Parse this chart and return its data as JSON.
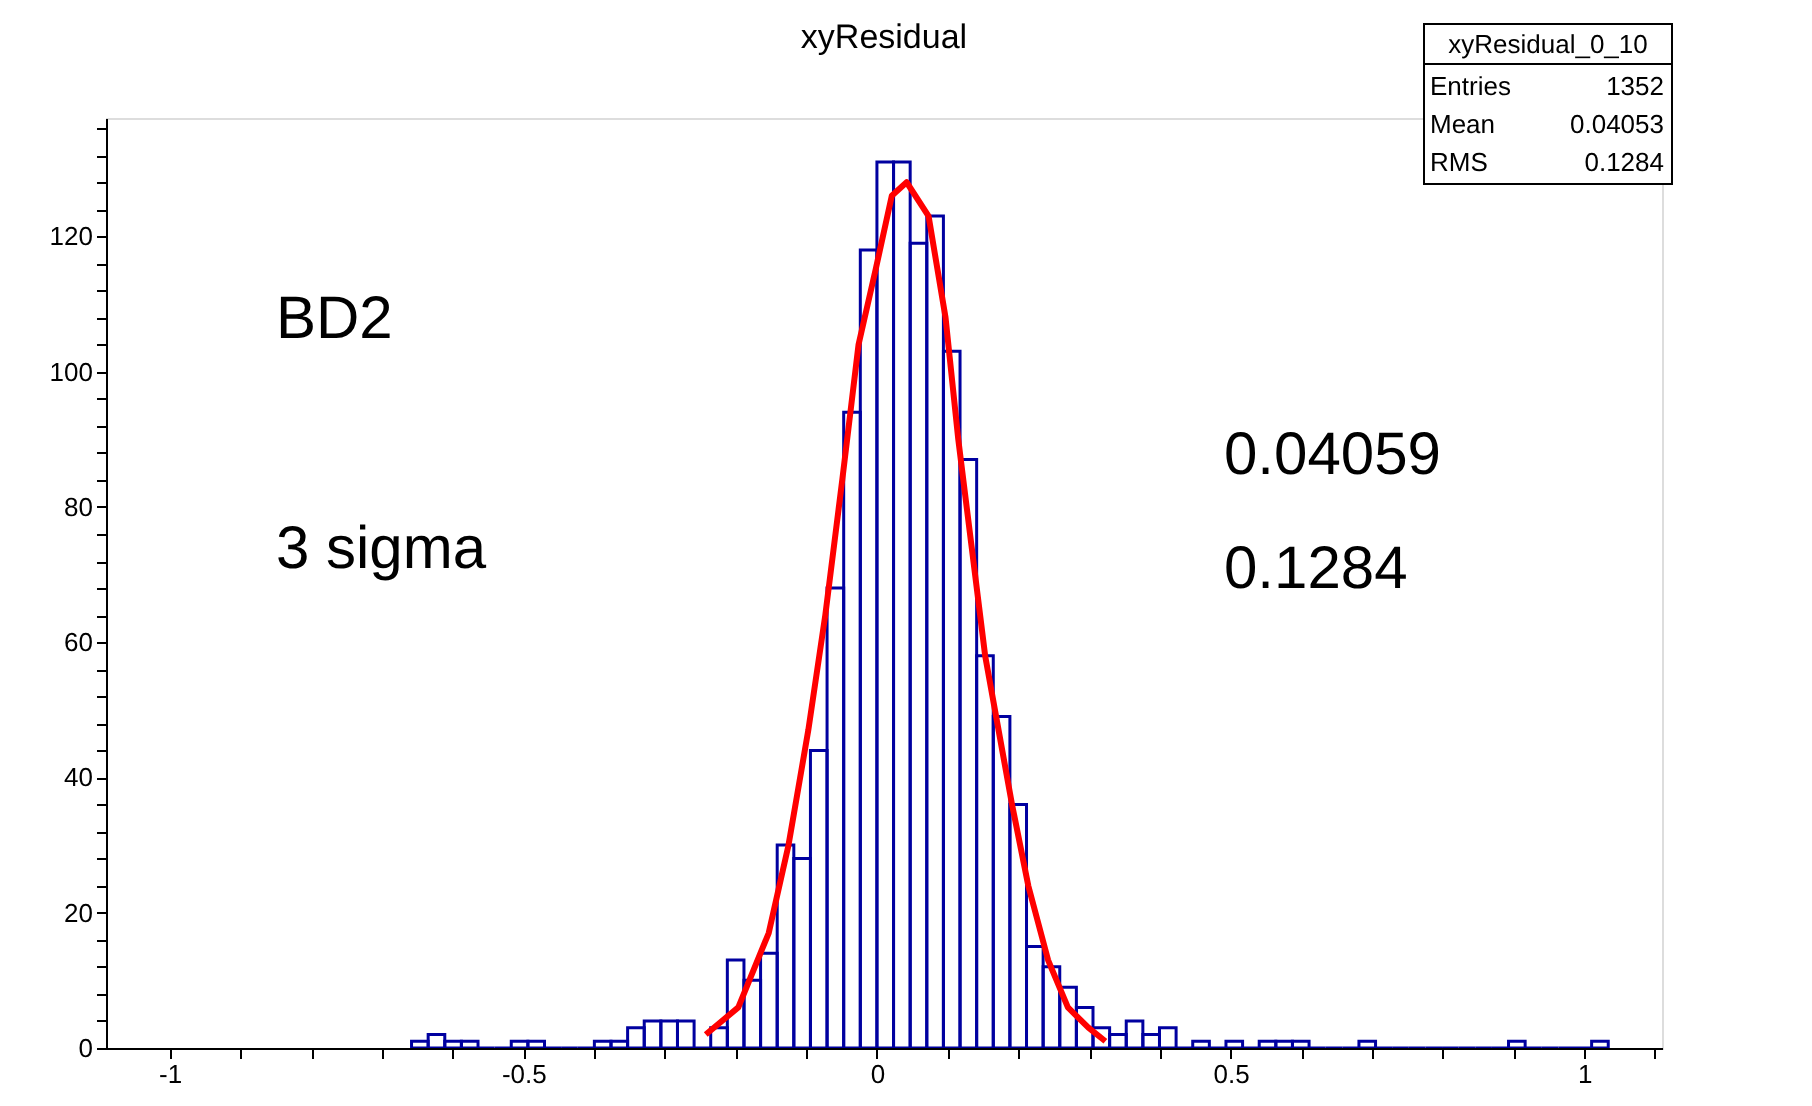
{
  "chart_data": {
    "type": "histogram",
    "title": "xyResidual",
    "xlim": [
      -1.09,
      1.11
    ],
    "ylim": [
      0,
      137.5
    ],
    "xticks": [
      -1,
      {
        "value": -0.9,
        "label": null
      },
      {
        "value": -0.8,
        "label": null
      },
      {
        "value": -0.7,
        "label": null
      },
      {
        "value": -0.6,
        "label": null
      },
      -0.5,
      {
        "value": -0.4,
        "label": null
      },
      {
        "value": -0.3,
        "label": null
      },
      {
        "value": -0.2,
        "label": null
      },
      {
        "value": -0.1,
        "label": null
      },
      0,
      {
        "value": 0.1,
        "label": null
      },
      {
        "value": 0.2,
        "label": null
      },
      {
        "value": 0.3,
        "label": null
      },
      {
        "value": 0.4,
        "label": null
      },
      0.5,
      {
        "value": 0.6,
        "label": null
      },
      {
        "value": 0.7,
        "label": null
      },
      {
        "value": 0.8,
        "label": null
      },
      {
        "value": 0.9,
        "label": null
      },
      1,
      {
        "value": 1.1,
        "label": null
      }
    ],
    "yticks": [
      0,
      {
        "value": 4,
        "label": null
      },
      {
        "value": 8,
        "label": null
      },
      {
        "value": 12,
        "label": null
      },
      {
        "value": 16,
        "label": null
      },
      20,
      {
        "value": 24,
        "label": null
      },
      {
        "value": 28,
        "label": null
      },
      {
        "value": 32,
        "label": null
      },
      {
        "value": 36,
        "label": null
      },
      40,
      {
        "value": 44,
        "label": null
      },
      {
        "value": 48,
        "label": null
      },
      {
        "value": 52,
        "label": null
      },
      {
        "value": 56,
        "label": null
      },
      60,
      {
        "value": 64,
        "label": null
      },
      {
        "value": 68,
        "label": null
      },
      {
        "value": 72,
        "label": null
      },
      {
        "value": 76,
        "label": null
      },
      80,
      {
        "value": 84,
        "label": null
      },
      {
        "value": 88,
        "label": null
      },
      {
        "value": 92,
        "label": null
      },
      {
        "value": 96,
        "label": null
      },
      100,
      {
        "value": 104,
        "label": null
      },
      {
        "value": 108,
        "label": null
      },
      {
        "value": 112,
        "label": null
      },
      {
        "value": 116,
        "label": null
      },
      120,
      {
        "value": 124,
        "label": null
      },
      {
        "value": 128,
        "label": null
      },
      {
        "value": 132,
        "label": null
      },
      {
        "value": 136,
        "label": null
      }
    ],
    "grid": false,
    "series": [
      {
        "color": "#0000a0",
        "bins": [
          -0.658,
          -0.6345,
          -0.611,
          -0.5875,
          -0.564,
          -0.5405,
          -0.517,
          -0.4935,
          -0.47,
          -0.4465,
          -0.423,
          -0.3995,
          -0.376,
          -0.3525,
          -0.329,
          -0.3055,
          -0.282,
          -0.2585,
          -0.235,
          -0.2115,
          -0.188,
          -0.1645,
          -0.141,
          -0.1175,
          -0.094,
          -0.0705,
          -0.047,
          -0.0235,
          0,
          0.0235,
          0.047,
          0.0705,
          0.094,
          0.1175,
          0.141,
          0.1645,
          0.188,
          0.2115,
          0.235,
          0.2585,
          0.282,
          0.3055,
          0.329,
          0.3525,
          0.376,
          0.3995,
          0.423,
          0.4465,
          0.47,
          0.4935,
          0.517,
          0.5405,
          0.564,
          0.5875,
          0.611,
          0.6345,
          0.658,
          0.6815,
          0.705,
          0.7285,
          0.752,
          0.7755,
          0.799,
          0.8225,
          0.846,
          0.8695,
          0.893,
          0.9165,
          0.94,
          0.9635,
          0.987,
          1.0105,
          1.034
        ],
        "values": [
          1,
          2,
          1,
          1,
          0,
          0,
          1,
          1,
          0,
          0,
          0,
          1,
          1,
          3,
          4,
          4,
          4,
          0,
          3,
          13,
          10,
          14,
          30,
          28,
          44,
          68,
          94,
          118,
          131,
          131,
          119,
          123,
          103,
          87,
          58,
          49,
          36,
          15,
          12,
          9,
          6,
          3,
          2,
          4,
          2,
          3,
          0,
          1,
          0,
          1,
          0,
          1,
          1,
          1,
          0,
          0,
          0,
          1,
          0,
          0,
          0,
          0,
          0,
          0,
          0,
          0,
          1,
          0,
          0,
          0,
          0,
          1
        ]
      },
      {
        "type": "line",
        "color": "#ff0000",
        "line_style": "solid",
        "x": [
          -0.242,
          -0.196,
          -0.153,
          -0.125,
          -0.097,
          -0.073,
          -0.049,
          -0.026,
          -0.002,
          0.021,
          0.042,
          0.073,
          0.097,
          0.115,
          0.134,
          0.153,
          0.172,
          0.191,
          0.214,
          0.242,
          0.27,
          0.299,
          0.323
        ],
        "values": [
          2,
          6,
          17,
          30,
          47,
          64,
          84,
          104,
          115,
          126,
          128,
          123,
          108,
          90,
          74,
          58,
          47,
          36,
          24,
          13,
          6,
          3,
          1
        ]
      }
    ],
    "annotations": [
      "xyResidual_0_10",
      "Entries",
      "1352",
      "Mean",
      "0.04053",
      "RMS",
      "0.1284",
      "BD2",
      "3 sigma",
      "0.04059",
      "0.1284"
    ]
  }
}
